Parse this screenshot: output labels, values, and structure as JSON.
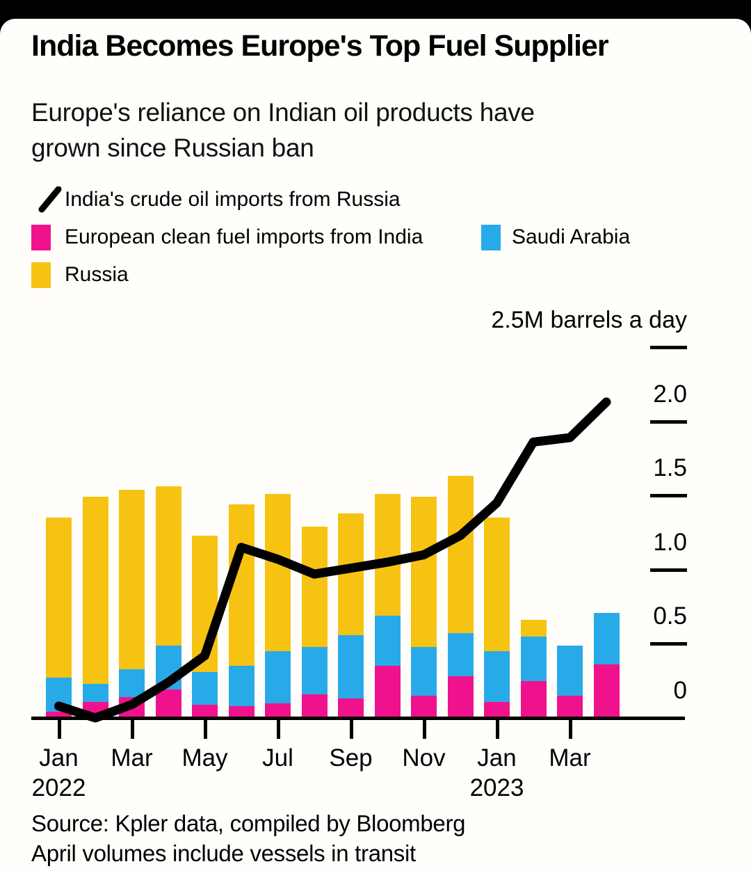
{
  "page": {
    "title": "India Becomes Europe's Top Fuel Supplier",
    "subtitle": "Europe's reliance on Indian oil products have\ngrown since Russian ban"
  },
  "legend": {
    "line_item_label": "India's crude oil imports from Russia",
    "pink_item_label": "European clean fuel imports from India",
    "blue_item_label": "Saudi Arabia",
    "yellow_item_label": "Russia"
  },
  "axis": {
    "header_label": "2.5M barrels a day",
    "y_tick_labels": [
      "2.0",
      "1.5",
      "1.0",
      "0.5",
      "0"
    ],
    "y_tick_values": [
      2.0,
      1.5,
      1.0,
      0.5,
      0
    ],
    "y_dash_values": [
      2.5,
      2.0,
      1.5,
      1.0,
      0.5
    ],
    "x_ticks": [
      {
        "month": "Jan",
        "year": "2022"
      },
      {
        "month": "Mar",
        "year": ""
      },
      {
        "month": "May",
        "year": ""
      },
      {
        "month": "Jul",
        "year": ""
      },
      {
        "month": "Sep",
        "year": ""
      },
      {
        "month": "Nov",
        "year": ""
      },
      {
        "month": "Jan",
        "year": "2023"
      },
      {
        "month": "Mar",
        "year": ""
      }
    ]
  },
  "colors": {
    "pink": "#f0128c",
    "blue": "#29aae8",
    "yellow": "#f6c313",
    "line": "#000000",
    "background": "#fffefb",
    "top_bar": "#000000"
  },
  "chart_data": {
    "type": "combo: stacked bar + line",
    "unit": "M barrels a day",
    "ylim": [
      0,
      2.5
    ],
    "grid": false,
    "legend_position": "top-left",
    "categories": [
      "Jan 2022",
      "Feb 2022",
      "Mar 2022",
      "Apr 2022",
      "May 2022",
      "Jun 2022",
      "Jul 2022",
      "Aug 2022",
      "Sep 2022",
      "Oct 2022",
      "Nov 2022",
      "Dec 2022",
      "Jan 2023",
      "Feb 2023",
      "Mar 2023",
      "Apr 2023"
    ],
    "series": [
      {
        "name": "European clean fuel imports from India",
        "type": "bar",
        "stack_order": 1,
        "color_key": "pink",
        "values": [
          0.04,
          0.11,
          0.14,
          0.19,
          0.09,
          0.08,
          0.1,
          0.16,
          0.13,
          0.35,
          0.15,
          0.28,
          0.11,
          0.25,
          0.15,
          0.36
        ]
      },
      {
        "name": "Saudi Arabia",
        "type": "bar",
        "stack_order": 2,
        "color_key": "blue",
        "values": [
          0.23,
          0.12,
          0.19,
          0.3,
          0.22,
          0.27,
          0.35,
          0.32,
          0.43,
          0.34,
          0.33,
          0.29,
          0.34,
          0.3,
          0.34,
          0.35
        ]
      },
      {
        "name": "Russia",
        "type": "bar",
        "stack_order": 3,
        "color_key": "yellow",
        "values": [
          1.08,
          1.26,
          1.21,
          1.07,
          0.92,
          1.09,
          1.06,
          0.81,
          0.82,
          0.82,
          1.01,
          1.06,
          0.9,
          0.11,
          0.0,
          0.0
        ]
      },
      {
        "name": "India's crude oil imports from Russia",
        "type": "line",
        "color_key": "line",
        "values": [
          0.08,
          0.0,
          0.09,
          0.24,
          0.42,
          1.15,
          1.07,
          0.97,
          1.01,
          1.05,
          1.1,
          1.23,
          1.45,
          1.86,
          1.89,
          2.13
        ]
      }
    ]
  },
  "footer": {
    "source": "Source: Kpler data, compiled by Bloomberg",
    "note": "April volumes include vessels in transit"
  }
}
